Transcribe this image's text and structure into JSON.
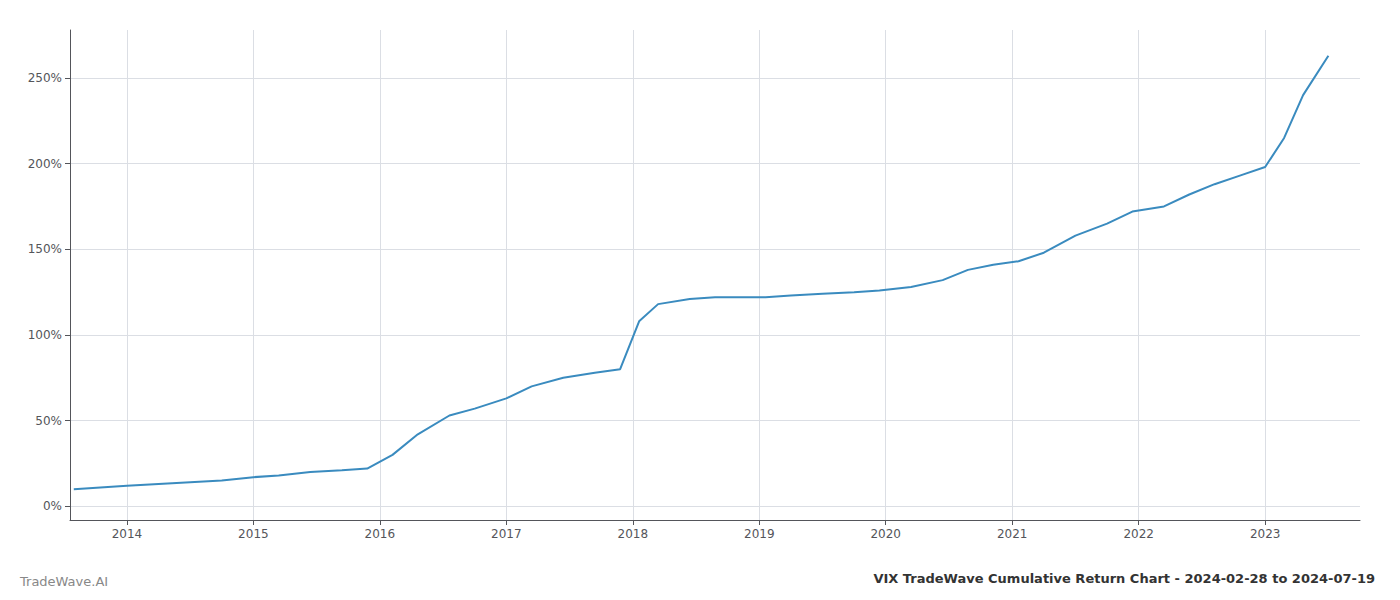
{
  "chart_data": {
    "type": "line",
    "title": "VIX TradeWave Cumulative Return Chart - 2024-02-28 to 2024-07-19",
    "annotations": [
      "TradeWave.AI"
    ],
    "color": "#3a8bbf",
    "x": [
      2013.58,
      2014.0,
      2014.25,
      2014.5,
      2014.75,
      2015.0,
      2015.2,
      2015.45,
      2015.7,
      2015.9,
      2016.1,
      2016.3,
      2016.55,
      2016.75,
      2017.0,
      2017.2,
      2017.45,
      2017.7,
      2017.9,
      2018.05,
      2018.2,
      2018.45,
      2018.65,
      2018.85,
      2019.05,
      2019.25,
      2019.5,
      2019.75,
      2019.95,
      2020.2,
      2020.45,
      2020.65,
      2020.85,
      2021.05,
      2021.25,
      2021.5,
      2021.75,
      2021.95,
      2022.2,
      2022.4,
      2022.6,
      2022.8,
      2023.0,
      2023.15,
      2023.3,
      2023.5
    ],
    "values": [
      10,
      12,
      13,
      14,
      15,
      17,
      18,
      20,
      21,
      22,
      30,
      42,
      53,
      57,
      63,
      70,
      75,
      78,
      80,
      108,
      118,
      121,
      122,
      122,
      122,
      123,
      124,
      125,
      126,
      128,
      132,
      138,
      141,
      143,
      148,
      158,
      165,
      172,
      175,
      182,
      188,
      193,
      198,
      215,
      240,
      263
    ],
    "xlim": [
      2013.55,
      2023.75
    ],
    "xticks": [
      2014,
      2015,
      2016,
      2017,
      2018,
      2019,
      2020,
      2021,
      2022,
      2023
    ],
    "ylim": [
      -8,
      278
    ],
    "yticks": [
      {
        "value": 0,
        "label": "0%"
      },
      {
        "value": 50,
        "label": "50%"
      },
      {
        "value": 100,
        "label": "100%"
      },
      {
        "value": 150,
        "label": "150%"
      },
      {
        "value": 200,
        "label": "200%"
      },
      {
        "value": 250,
        "label": "250%"
      }
    ],
    "grid": true
  }
}
